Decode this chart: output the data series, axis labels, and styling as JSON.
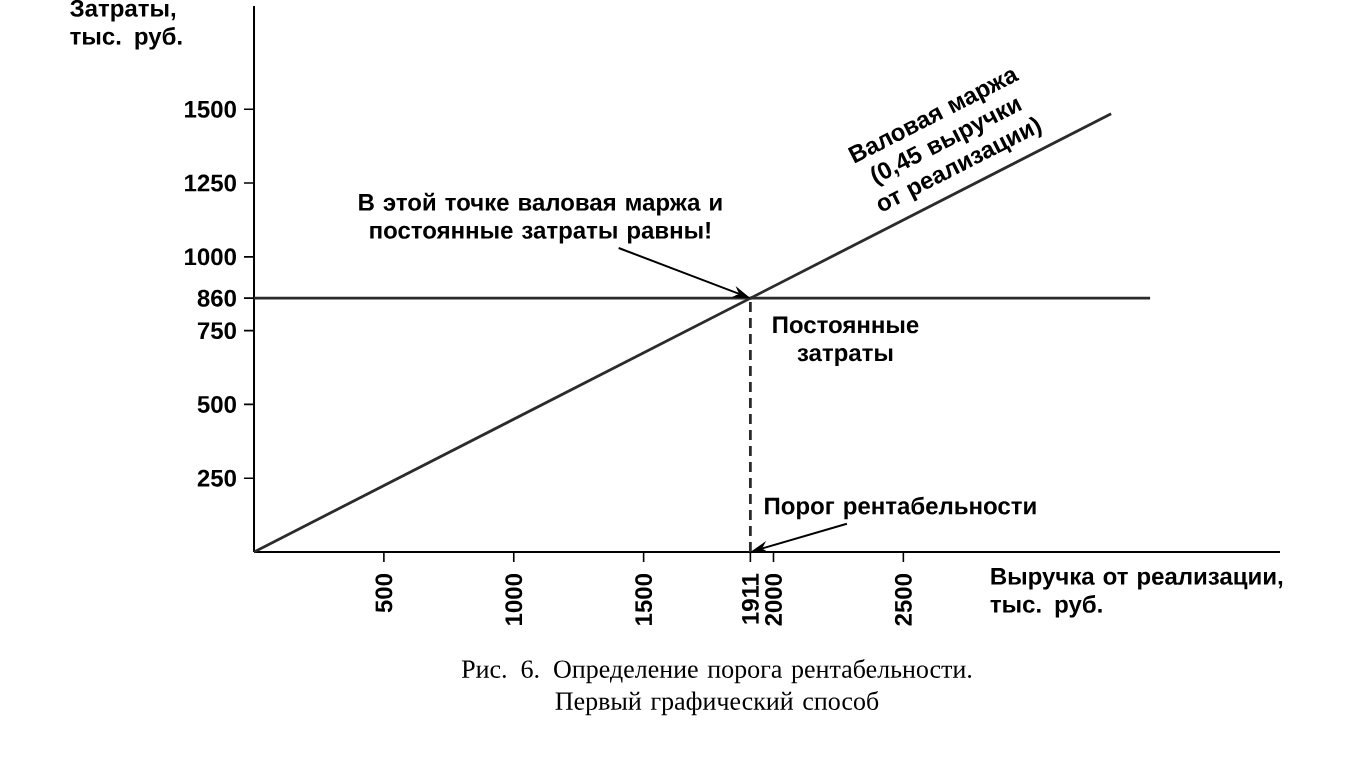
{
  "chart_data": {
    "type": "line",
    "title": "Рис. 6. Определение порога рентабельности. Первый графический способ",
    "xlabel": "Выручка от реализации, тыс. руб.",
    "ylabel": "Затраты, тыс. руб.",
    "xlim": [
      0,
      3950
    ],
    "ylim": [
      0,
      1850
    ],
    "xticks": [
      500,
      1000,
      1500,
      1911,
      2000,
      2500
    ],
    "yticks": [
      250,
      500,
      750,
      860,
      1000,
      1250,
      1500
    ],
    "series": [
      {
        "name": "Валовая маржа (0,45 выручки от реализации)",
        "color": "#2b2b2b",
        "x": [
          0,
          3300
        ],
        "values": [
          0,
          1485
        ]
      },
      {
        "name": "Постоянные затраты",
        "color": "#2b2b2b",
        "x": [
          0,
          3450
        ],
        "values": [
          860,
          860
        ]
      },
      {
        "color": "#2b2b2b",
        "line_style": "dashed",
        "x": [
          1911,
          1911
        ],
        "values": [
          0,
          860
        ]
      }
    ],
    "annotations": [
      {
        "text": "В этой точке валовая маржа и постоянные затраты равны!",
        "x": 1911,
        "y": 860
      },
      {
        "text": "Порог рентабельности",
        "x": 1911,
        "y": 0
      }
    ]
  }
}
